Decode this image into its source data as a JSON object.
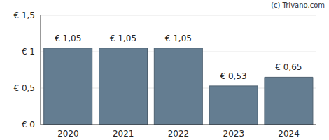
{
  "chart_data": {
    "type": "bar",
    "annotation": "(c) Trivano.com",
    "categories": [
      "2020",
      "2021",
      "2022",
      "2023",
      "2024"
    ],
    "values": [
      1.05,
      1.05,
      1.05,
      0.53,
      0.65
    ],
    "value_labels": [
      "€ 1,05",
      "€ 1,05",
      "€ 1,05",
      "€ 0,53",
      "€ 0,65"
    ],
    "data_labels": true,
    "color": "#647d91",
    "ylim": [
      0,
      1.5
    ],
    "yticks": [
      {
        "value": 0,
        "label": "€ 0"
      },
      {
        "value": 0.5,
        "label": "€ 0,5"
      },
      {
        "value": 1,
        "label": "€ 1"
      },
      {
        "value": 1.5,
        "label": "€ 1,5"
      }
    ],
    "grid": true
  }
}
